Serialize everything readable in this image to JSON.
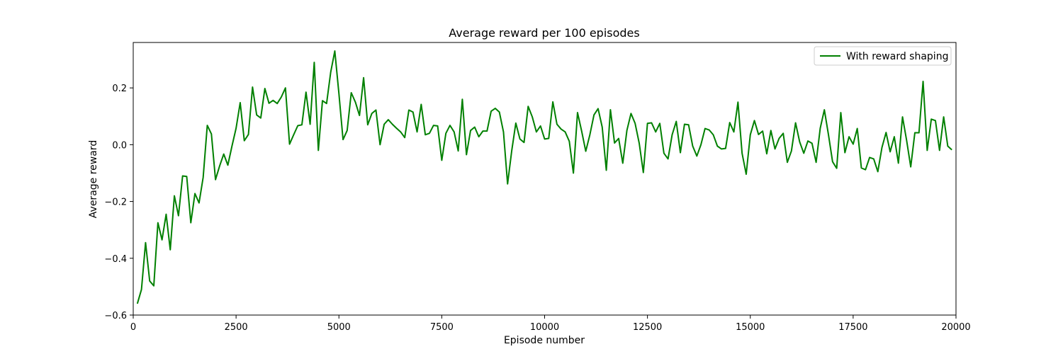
{
  "chart_data": {
    "type": "line",
    "title": "Average reward per 100 episodes",
    "xlabel": "Episode number",
    "ylabel": "Average reward",
    "xlim": [
      0,
      20000
    ],
    "ylim": [
      -0.6,
      0.36
    ],
    "xticks": [
      0,
      2500,
      5000,
      7500,
      10000,
      12500,
      15000,
      17500,
      20000
    ],
    "yticks": [
      -0.6,
      -0.4,
      -0.2,
      0.0,
      0.2
    ],
    "ytick_labels": [
      "−0.6",
      "−0.4",
      "−0.2",
      "0.0",
      "0.2"
    ],
    "grid": false,
    "legend": {
      "position": "top-right"
    },
    "series": [
      {
        "name": "With reward shaping",
        "color": "#008000",
        "x_start": 100,
        "x_step": 100,
        "values": [
          -0.56,
          -0.51,
          -0.345,
          -0.48,
          -0.497,
          -0.275,
          -0.335,
          -0.245,
          -0.37,
          -0.18,
          -0.25,
          -0.11,
          -0.112,
          -0.275,
          -0.172,
          -0.205,
          -0.115,
          0.068,
          0.038,
          -0.123,
          -0.075,
          -0.033,
          -0.072,
          -0.005,
          0.058,
          0.148,
          0.014,
          0.036,
          0.203,
          0.105,
          0.094,
          0.198,
          0.146,
          0.156,
          0.145,
          0.168,
          0.2,
          0.002,
          0.035,
          0.067,
          0.07,
          0.185,
          0.072,
          0.29,
          -0.02,
          0.155,
          0.145,
          0.255,
          0.33,
          0.18,
          0.018,
          0.05,
          0.183,
          0.15,
          0.103,
          0.236,
          0.07,
          0.11,
          0.122,
          0.0,
          0.072,
          0.088,
          0.072,
          0.058,
          0.045,
          0.025,
          0.122,
          0.115,
          0.045,
          0.142,
          0.035,
          0.04,
          0.068,
          0.066,
          -0.055,
          0.04,
          0.068,
          0.045,
          -0.022,
          0.16,
          -0.035,
          0.05,
          0.062,
          0.028,
          0.048,
          0.048,
          0.118,
          0.128,
          0.115,
          0.045,
          -0.138,
          -0.022,
          0.076,
          0.02,
          0.008,
          0.135,
          0.098,
          0.045,
          0.066,
          0.02,
          0.022,
          0.151,
          0.072,
          0.055,
          0.045,
          0.012,
          -0.1,
          0.113,
          0.048,
          -0.023,
          0.035,
          0.105,
          0.127,
          0.062,
          -0.09,
          0.123,
          0.006,
          0.022,
          -0.065,
          0.05,
          0.11,
          0.075,
          0.005,
          -0.098,
          0.075,
          0.077,
          0.045,
          0.075,
          -0.03,
          -0.05,
          0.035,
          0.082,
          -0.028,
          0.072,
          0.07,
          -0.005,
          -0.04,
          0.0,
          0.057,
          0.052,
          0.035,
          -0.005,
          -0.015,
          -0.013,
          0.078,
          0.045,
          0.15,
          -0.03,
          -0.104,
          0.035,
          0.085,
          0.036,
          0.048,
          -0.032,
          0.05,
          -0.015,
          0.022,
          0.04,
          -0.062,
          -0.022,
          0.077,
          0.01,
          -0.03,
          0.013,
          0.005,
          -0.062,
          0.058,
          0.123,
          0.035,
          -0.06,
          -0.083,
          0.113,
          -0.028,
          0.028,
          0.002,
          0.057,
          -0.082,
          -0.088,
          -0.045,
          -0.05,
          -0.095,
          -0.01,
          0.043,
          -0.025,
          0.028,
          -0.065,
          0.098,
          0.015,
          -0.078,
          0.042,
          0.042,
          0.223,
          -0.02,
          0.09,
          0.085,
          -0.02,
          0.098,
          -0.005,
          -0.018
        ]
      }
    ]
  }
}
